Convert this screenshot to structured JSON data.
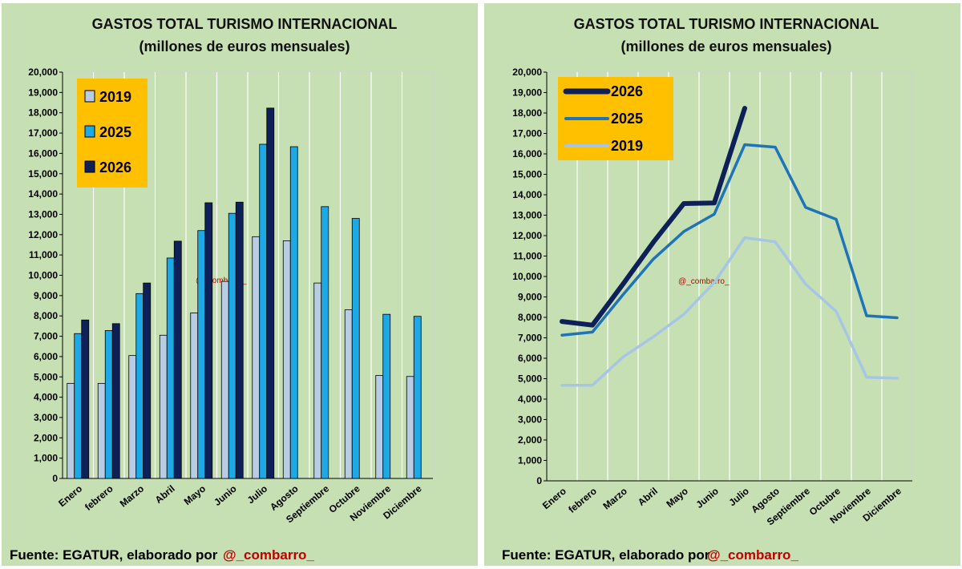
{
  "chart_data": [
    {
      "type": "bar",
      "title": "GASTOS TOTAL TURISMO INTERNACIONAL",
      "subtitle": "(millones de euros mensuales)",
      "categories": [
        "Enero",
        "febrero",
        "Marzo",
        "Abril",
        "Mayo",
        "Junio",
        "Julio",
        "Agosto",
        "Septiembre",
        "Octubre",
        "Noviembre",
        "Diciembre"
      ],
      "series": [
        {
          "name": "2019",
          "color": "#b8cce4",
          "values": [
            4680,
            4680,
            6050,
            7050,
            8150,
            9700,
            11900,
            11700,
            9620,
            8300,
            5070,
            5020
          ]
        },
        {
          "name": "2025",
          "color": "#1da9e6",
          "values": [
            7130,
            7280,
            9100,
            10850,
            12200,
            13050,
            16450,
            16330,
            13380,
            12800,
            8080,
            7980
          ]
        },
        {
          "name": "2026",
          "color": "#0d2158",
          "values": [
            7800,
            7620,
            9620,
            11680,
            13570,
            13600,
            18230,
            null,
            null,
            null,
            null,
            null
          ]
        }
      ],
      "ylim": [
        0,
        20000
      ],
      "yticks": [
        "0",
        "1,000",
        "2,000",
        "3,000",
        "4,000",
        "5,000",
        "6,000",
        "7,000",
        "8,000",
        "9,000",
        "10,000",
        "11,000",
        "12,000",
        "13,000",
        "14,000",
        "15,000",
        "16,000",
        "17,000",
        "18,000",
        "19,000",
        "20,000"
      ],
      "legend": {
        "position": "top-left",
        "order": [
          "2019",
          "2025",
          "2026"
        ],
        "background": "#ffc000"
      },
      "grid": "vertical",
      "watermark": "@_combarro_",
      "footer": {
        "text": "Fuente: EGATUR, elaborado por",
        "handle": "@_combarro_"
      }
    },
    {
      "type": "line",
      "title": "GASTOS TOTAL TURISMO INTERNACIONAL",
      "subtitle": "(millones de euros mensuales)",
      "categories": [
        "Enero",
        "febrero",
        "Marzo",
        "Abril",
        "Mayo",
        "Junio",
        "Julio",
        "Agosto",
        "Septiembre",
        "Octubre",
        "Noviembre",
        "Diciembre"
      ],
      "series": [
        {
          "name": "2026",
          "color": "#0d2158",
          "values": [
            7800,
            7620,
            9620,
            11680,
            13570,
            13600,
            18230,
            null,
            null,
            null,
            null,
            null
          ]
        },
        {
          "name": "2025",
          "color": "#1f74b8",
          "values": [
            7130,
            7280,
            9100,
            10850,
            12200,
            13050,
            16450,
            16330,
            13380,
            12800,
            8080,
            7980
          ]
        },
        {
          "name": "2019",
          "color": "#a7c6e6",
          "values": [
            4680,
            4680,
            6050,
            7050,
            8150,
            9700,
            11900,
            11700,
            9620,
            8300,
            5070,
            5020
          ]
        }
      ],
      "ylim": [
        0,
        20000
      ],
      "yticks": [
        "0",
        "1,000",
        "2,000",
        "3,000",
        "4,000",
        "5,000",
        "6,000",
        "7,000",
        "8,000",
        "9,000",
        "10,000",
        "11,000",
        "12,000",
        "13,000",
        "14,000",
        "15,000",
        "16,000",
        "17,000",
        "18,000",
        "19,000",
        "20,000"
      ],
      "legend": {
        "position": "top-left",
        "order": [
          "2026",
          "2025",
          "2019"
        ],
        "background": "#ffc000"
      },
      "grid": "vertical",
      "watermark": "@_combarro_",
      "footer": {
        "text": "Fuente: EGATUR, elaborado por",
        "handle": "@_combarro_"
      }
    }
  ]
}
